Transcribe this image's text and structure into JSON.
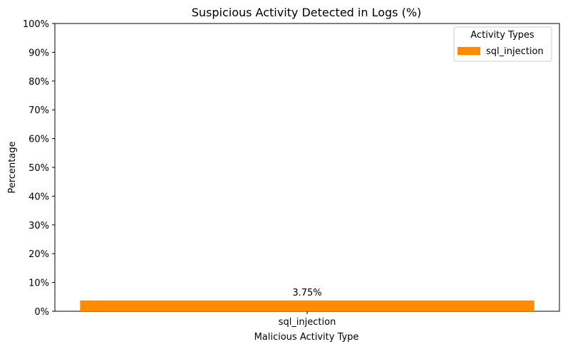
{
  "chart_data": {
    "type": "bar",
    "title": "Suspicious Activity Detected in Logs (%)",
    "xlabel": "Malicious Activity Type",
    "ylabel": "Percentage",
    "categories": [
      "sql_injection"
    ],
    "values": [
      3.75
    ],
    "data_labels": [
      "3.75%"
    ],
    "ylim": [
      0,
      100
    ],
    "yticks": [
      0,
      10,
      20,
      30,
      40,
      50,
      60,
      70,
      80,
      90,
      100
    ],
    "ytick_labels": [
      "0%",
      "10%",
      "20%",
      "30%",
      "40%",
      "50%",
      "60%",
      "70%",
      "80%",
      "90%",
      "100%"
    ],
    "grid": false,
    "legend": {
      "title": "Activity Types",
      "placement": "top-right",
      "entries": [
        "sql_injection"
      ]
    },
    "colors": {
      "bar": "#ff8c00"
    }
  }
}
